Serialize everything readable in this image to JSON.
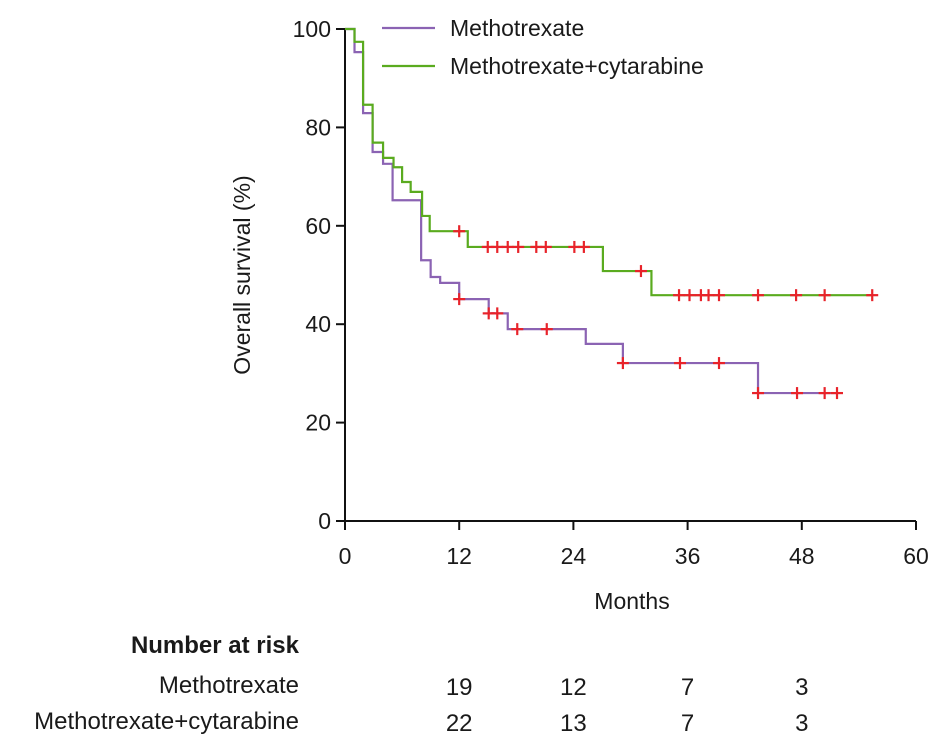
{
  "chart_data": {
    "type": "line",
    "subtype": "kaplan-meier-step",
    "xlabel": "Months",
    "ylabel": "Overall survival (%)",
    "xlim": [
      0,
      60
    ],
    "ylim": [
      0,
      100
    ],
    "xticks": [
      0,
      12,
      24,
      36,
      48,
      60
    ],
    "yticks": [
      0,
      20,
      40,
      60,
      80,
      100
    ],
    "grid": false,
    "legend_position": "top",
    "censor_color": "#e8232a",
    "series": [
      {
        "name": "Methotrexate",
        "color": "#8b63b3",
        "steps": [
          [
            0,
            100
          ],
          [
            1.0,
            95.3
          ],
          [
            1.9,
            82.9
          ],
          [
            2.9,
            75.0
          ],
          [
            4.0,
            72.6
          ],
          [
            5.0,
            65.2
          ],
          [
            8.0,
            53.0
          ],
          [
            9.0,
            49.6
          ],
          [
            10.0,
            48.4
          ],
          [
            12.0,
            45.1
          ],
          [
            15.1,
            42.2
          ],
          [
            17.1,
            39.0
          ],
          [
            25.3,
            36.0
          ],
          [
            29.2,
            32.1
          ],
          [
            43.4,
            26.0
          ]
        ],
        "end": 51.7,
        "censored": [
          12.0,
          15.1,
          16.0,
          18.1,
          21.2,
          29.2,
          35.2,
          39.3,
          43.4,
          47.5,
          50.4,
          51.7
        ]
      },
      {
        "name": "Methotrexate+cytarabine",
        "color": "#5aab1f",
        "steps": [
          [
            0,
            100
          ],
          [
            1.0,
            97.4
          ],
          [
            1.9,
            84.6
          ],
          [
            2.9,
            76.9
          ],
          [
            4.0,
            73.8
          ],
          [
            5.1,
            71.9
          ],
          [
            6.0,
            68.9
          ],
          [
            6.9,
            66.9
          ],
          [
            8.1,
            62.0
          ],
          [
            8.9,
            58.9
          ],
          [
            12.9,
            55.7
          ],
          [
            27.1,
            50.8
          ],
          [
            32.2,
            45.9
          ]
        ],
        "end": 55.4,
        "censored": [
          12.0,
          15.0,
          16.0,
          17.1,
          18.2,
          20.1,
          21.1,
          24.1,
          25.1,
          31.1,
          35.1,
          36.2,
          37.4,
          38.2,
          39.3,
          43.4,
          47.4,
          50.4,
          55.4
        ]
      }
    ]
  },
  "risk_table": {
    "title": "Number at risk",
    "times": [
      12,
      24,
      36,
      48
    ],
    "rows": [
      {
        "label": "Methotrexate",
        "values": [
          "19",
          "12",
          "7",
          "3"
        ]
      },
      {
        "label": "Methotrexate+cytarabine",
        "values": [
          "22",
          "13",
          "7",
          "3"
        ]
      }
    ]
  }
}
